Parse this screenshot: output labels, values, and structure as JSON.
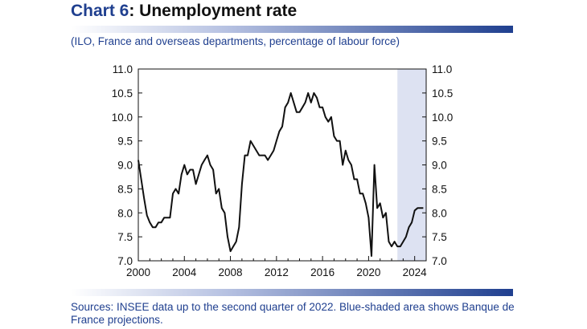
{
  "header": {
    "chart_number": "Chart 6",
    "title_rest": ": Unemployment rate",
    "subtitle": "(ILO, France and overseas departments, percentage of labour force)"
  },
  "footer": {
    "sources": "Sources: INSEE data up to the second quarter of 2022. Blue-shaded area shows Banque de France projections."
  },
  "chart_data": {
    "type": "line",
    "title": "Unemployment rate",
    "subtitle": "(ILO, France and overseas departments, percentage of labour force)",
    "xlabel": "",
    "ylabel": "",
    "xlim": [
      2000.0,
      2025.0
    ],
    "ylim": [
      7.0,
      11.0
    ],
    "x_ticks": [
      2000,
      2004,
      2008,
      2012,
      2016,
      2020,
      2024
    ],
    "y_ticks": [
      7.0,
      7.5,
      8.0,
      8.5,
      9.0,
      9.5,
      10.0,
      10.5,
      11.0
    ],
    "y_tick_labels": [
      "7.0",
      "7.5",
      "8.0",
      "8.5",
      "9.0",
      "9.5",
      "10.0",
      "10.5",
      "11.0"
    ],
    "grid": false,
    "dual_y_axis": true,
    "shaded_region": {
      "x_start": 2022.5,
      "x_end": 2025.0,
      "color": "#dde2f2",
      "meaning": "Banque de France projections"
    },
    "line_color": "#111111",
    "series": [
      {
        "name": "",
        "x": [
          2000.0,
          2000.25,
          2000.5,
          2000.75,
          2001.0,
          2001.25,
          2001.5,
          2001.75,
          2002.0,
          2002.25,
          2002.5,
          2002.75,
          2003.0,
          2003.25,
          2003.5,
          2003.75,
          2004.0,
          2004.25,
          2004.5,
          2004.75,
          2005.0,
          2005.25,
          2005.5,
          2005.75,
          2006.0,
          2006.25,
          2006.5,
          2006.75,
          2007.0,
          2007.25,
          2007.5,
          2007.75,
          2008.0,
          2008.25,
          2008.5,
          2008.75,
          2009.0,
          2009.25,
          2009.5,
          2009.75,
          2010.0,
          2010.25,
          2010.5,
          2010.75,
          2011.0,
          2011.25,
          2011.5,
          2011.75,
          2012.0,
          2012.25,
          2012.5,
          2012.75,
          2013.0,
          2013.25,
          2013.5,
          2013.75,
          2014.0,
          2014.25,
          2014.5,
          2014.75,
          2015.0,
          2015.25,
          2015.5,
          2015.75,
          2016.0,
          2016.25,
          2016.5,
          2016.75,
          2017.0,
          2017.25,
          2017.5,
          2017.75,
          2018.0,
          2018.25,
          2018.5,
          2018.75,
          2019.0,
          2019.25,
          2019.5,
          2019.75,
          2020.0,
          2020.25,
          2020.5,
          2020.75,
          2021.0,
          2021.25,
          2021.5,
          2021.75,
          2022.0,
          2022.25,
          2022.5,
          2022.75,
          2023.0,
          2023.25,
          2023.5,
          2023.75,
          2024.0,
          2024.25,
          2024.5,
          2024.75
        ],
        "values": [
          9.1,
          8.7,
          8.3,
          7.95,
          7.8,
          7.7,
          7.7,
          7.8,
          7.8,
          7.9,
          7.9,
          7.9,
          8.4,
          8.5,
          8.4,
          8.8,
          9.0,
          8.8,
          8.9,
          8.9,
          8.6,
          8.8,
          9.0,
          9.1,
          9.2,
          9.0,
          8.9,
          8.4,
          8.5,
          8.1,
          8.0,
          7.5,
          7.2,
          7.3,
          7.4,
          7.7,
          8.6,
          9.2,
          9.2,
          9.5,
          9.4,
          9.3,
          9.2,
          9.2,
          9.2,
          9.1,
          9.2,
          9.3,
          9.5,
          9.7,
          9.8,
          10.2,
          10.3,
          10.5,
          10.3,
          10.1,
          10.1,
          10.2,
          10.3,
          10.5,
          10.3,
          10.5,
          10.4,
          10.2,
          10.2,
          10.0,
          9.9,
          10.0,
          9.6,
          9.5,
          9.5,
          9.0,
          9.3,
          9.1,
          9.0,
          8.7,
          8.7,
          8.4,
          8.4,
          8.2,
          7.9,
          7.1,
          9.0,
          8.1,
          8.2,
          7.9,
          8.0,
          7.4,
          7.3,
          7.4,
          7.3,
          7.3,
          7.4,
          7.5,
          7.7,
          7.8,
          8.05,
          8.1,
          8.1,
          8.1
        ]
      }
    ]
  }
}
